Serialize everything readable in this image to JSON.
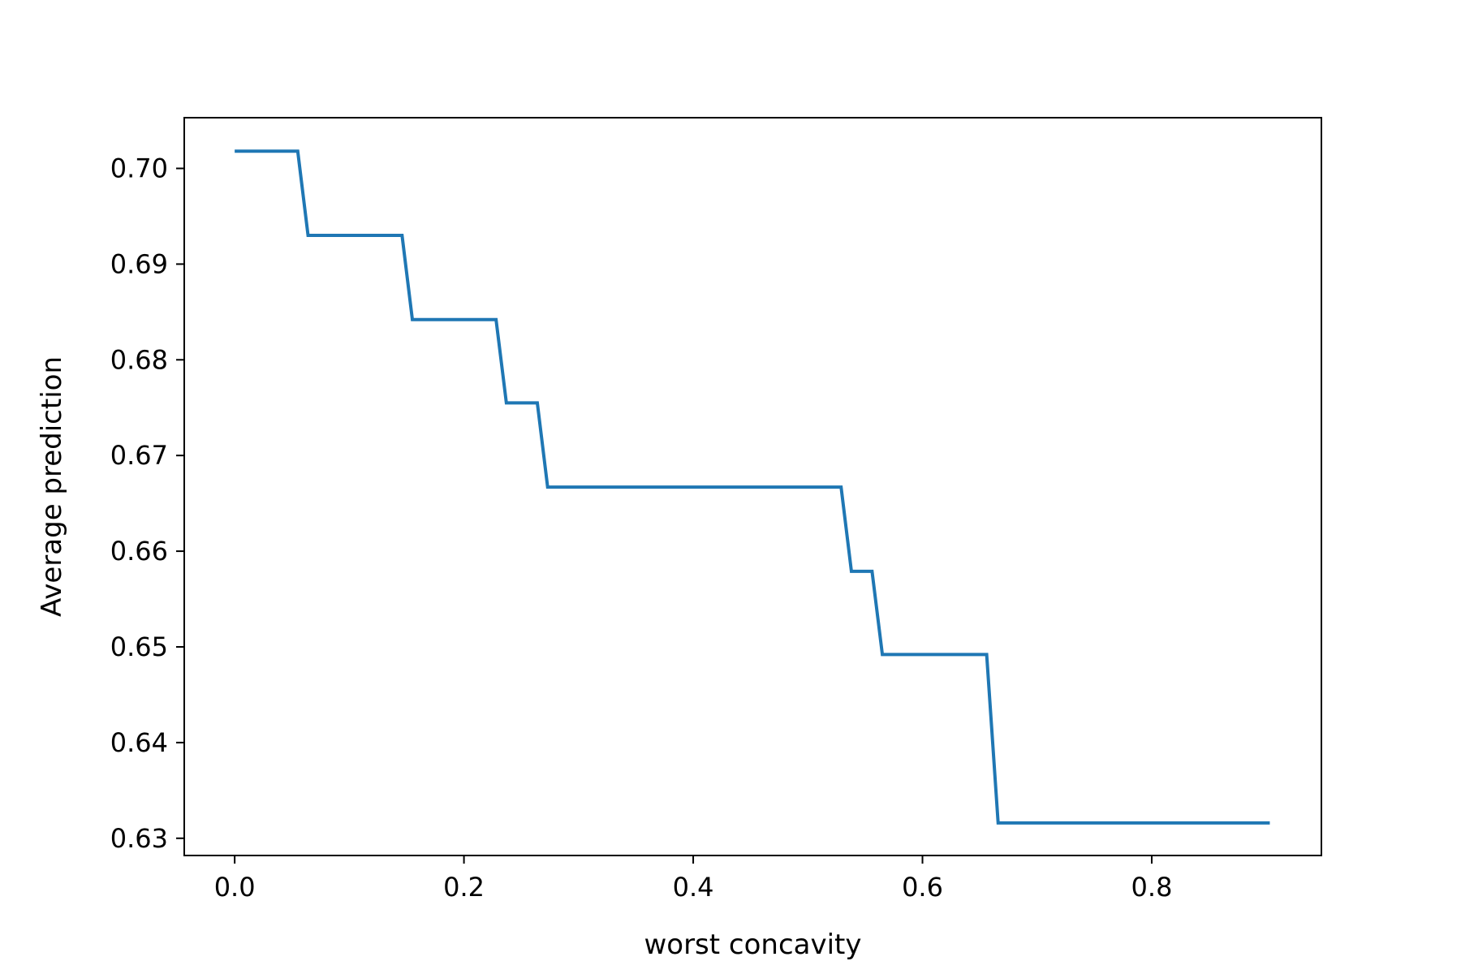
{
  "chart_data": {
    "type": "line",
    "title": "",
    "xlabel": "worst concavity",
    "ylabel": "Average prediction",
    "xlim": [
      -0.044,
      0.948
    ],
    "ylim": [
      0.6282,
      0.7053
    ],
    "x_ticks": [
      0.0,
      0.2,
      0.4,
      0.6,
      0.8
    ],
    "x_tick_labels": [
      "0.0",
      "0.2",
      "0.4",
      "0.6",
      "0.8"
    ],
    "y_ticks": [
      0.63,
      0.64,
      0.65,
      0.66,
      0.67,
      0.68,
      0.69,
      0.7
    ],
    "y_tick_labels": [
      "0.63",
      "0.64",
      "0.65",
      "0.66",
      "0.67",
      "0.68",
      "0.69",
      "0.70"
    ],
    "grid": false,
    "legend": "none",
    "series": [
      {
        "color": "#1f77b4",
        "x": [
          0.0,
          0.055,
          0.064,
          0.146,
          0.155,
          0.228,
          0.237,
          0.264,
          0.273,
          0.529,
          0.538,
          0.556,
          0.565,
          0.656,
          0.666,
          0.903
        ],
        "y": [
          0.7018,
          0.7018,
          0.693,
          0.693,
          0.6842,
          0.6842,
          0.6755,
          0.6755,
          0.6667,
          0.6667,
          0.6579,
          0.6579,
          0.6492,
          0.6492,
          0.6316,
          0.6316
        ]
      }
    ]
  }
}
